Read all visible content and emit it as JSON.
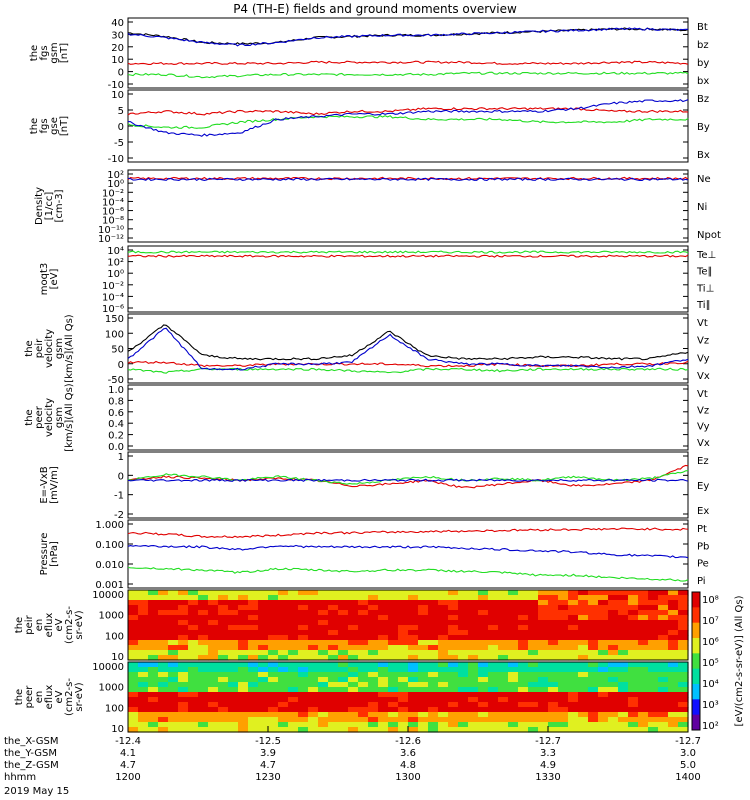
{
  "title": "P4 (TH-E) fields and ground moments overview",
  "date": "2019 May 15",
  "colors": {
    "black": "#000000",
    "red": "#e00000",
    "green": "#22dd22",
    "blue": "#0000cc"
  },
  "chart_data": [
    {
      "type": "line",
      "name": "fgs_gsm",
      "ylabel": [
        "the",
        "fgs",
        "gsm",
        "[nT]"
      ],
      "ylim": [
        -15,
        42
      ],
      "yticks": [
        "40",
        "30",
        "20",
        "10",
        "0",
        "-10"
      ],
      "legend": [
        {
          "text": "Bt",
          "color": "black"
        },
        {
          "text": "bz",
          "color": "red"
        },
        {
          "text": "by",
          "color": "green"
        },
        {
          "text": "bx",
          "color": "blue"
        }
      ],
      "series": [
        {
          "name": "Bt",
          "color": "black",
          "values": [
            30,
            27,
            22,
            21,
            22,
            26,
            27,
            28,
            28,
            29,
            30,
            31,
            32,
            33,
            33,
            32
          ]
        },
        {
          "name": "bz",
          "color": "red",
          "values": [
            5,
            5,
            5,
            5,
            5,
            6,
            6,
            6,
            6,
            6,
            5,
            5,
            5,
            6,
            6,
            5
          ]
        },
        {
          "name": "by",
          "color": "green",
          "values": [
            -4,
            -4,
            -6,
            -5,
            -4,
            -4,
            -4,
            -4,
            -4,
            -3,
            -3,
            -3,
            -3,
            -3,
            -3,
            -3
          ]
        },
        {
          "name": "bx",
          "color": "blue",
          "values": [
            29,
            26,
            22,
            20,
            22,
            26,
            27,
            28,
            28,
            29,
            30,
            31,
            32,
            33,
            33,
            32
          ]
        }
      ]
    },
    {
      "type": "line",
      "name": "fgs_gse",
      "ylabel": [
        "the",
        "fgs",
        "gse",
        "[nT]"
      ],
      "ylim": [
        -15,
        12
      ],
      "yticks": [
        "10",
        "5",
        "0",
        "-5",
        "-10"
      ],
      "legend": [
        {
          "text": "Bz",
          "color": "red"
        },
        {
          "text": "By",
          "color": "green"
        },
        {
          "text": "Bx",
          "color": "blue"
        }
      ],
      "series": [
        {
          "name": "Bz",
          "color": "red",
          "values": [
            3,
            4,
            3,
            4,
            4,
            3,
            4,
            4,
            5,
            5,
            5,
            5,
            5,
            4,
            4,
            4
          ]
        },
        {
          "name": "By",
          "color": "green",
          "values": [
            -1,
            -2,
            -2,
            0,
            1,
            2,
            2,
            2,
            1,
            1,
            1,
            0,
            0,
            0,
            1,
            1
          ]
        },
        {
          "name": "Bx",
          "color": "blue",
          "values": [
            0,
            -4,
            -5,
            -4,
            1,
            2,
            3,
            3,
            4,
            4,
            4,
            4,
            5,
            7,
            8,
            8
          ]
        }
      ]
    },
    {
      "type": "line",
      "name": "density",
      "ylabel": [
        "Density",
        "[1/cc]",
        "[cm-3]"
      ],
      "ylim": [
        -14,
        3
      ],
      "ylog": true,
      "yticks": [
        "10²",
        "10⁰",
        "10⁻²",
        "10⁻⁴",
        "10⁻⁶",
        "10⁻⁸",
        "10⁻¹⁰",
        "10⁻¹²"
      ],
      "legend": [
        {
          "text": "Ne",
          "color": "red"
        },
        {
          "text": "Ni",
          "color": "black"
        },
        {
          "text": "Npot",
          "color": "blue"
        }
      ],
      "series": [
        {
          "name": "Ne",
          "color": "red",
          "values": [
            1,
            1,
            1,
            1,
            1,
            1,
            1,
            1,
            1,
            1,
            1,
            1,
            1,
            1,
            1,
            1
          ]
        },
        {
          "name": "Npot",
          "color": "blue",
          "values": [
            0.8,
            0.8,
            0.8,
            0.8,
            0.8,
            0.8,
            0.8,
            0.8,
            0.8,
            0.8,
            0.8,
            0.8,
            0.8,
            0.8,
            0.8,
            0.8
          ]
        }
      ]
    },
    {
      "type": "line",
      "name": "temperature",
      "ylabel": [
        "moqt3",
        "[eV]"
      ],
      "ylim": [
        -8,
        5
      ],
      "ylog": true,
      "yticks": [
        "10⁴",
        "10²",
        "10⁰",
        "10⁻²",
        "10⁻⁴",
        "10⁻⁶"
      ],
      "legend": [
        {
          "text": "Te⊥",
          "color": "red"
        },
        {
          "text": "Te∥",
          "color": "black"
        },
        {
          "text": "Ti⊥",
          "color": "blue"
        },
        {
          "text": "Ti∥",
          "color": "green"
        }
      ],
      "series": [
        {
          "name": "Te⊥",
          "color": "red",
          "values": [
            3,
            3,
            3,
            3,
            3,
            3,
            3,
            3,
            3,
            3,
            3,
            3,
            3,
            3,
            3,
            3
          ]
        },
        {
          "name": "Ti∥",
          "color": "green",
          "values": [
            3.8,
            3.8,
            3.8,
            3.8,
            3.8,
            3.8,
            3.8,
            3.8,
            3.8,
            3.8,
            3.8,
            3.8,
            3.8,
            3.8,
            3.8,
            3.8
          ]
        }
      ]
    },
    {
      "type": "line",
      "name": "peir_velocity",
      "ylabel": [
        "the",
        "peir",
        "velocity",
        "gsm",
        "[km/s](All Qs)"
      ],
      "ylim": [
        -50,
        150
      ],
      "yticks": [
        "150",
        "100",
        "50",
        "0",
        "-50"
      ],
      "legend": [
        {
          "text": "Vt",
          "color": "black"
        },
        {
          "text": "Vz",
          "color": "red"
        },
        {
          "text": "Vy",
          "color": "green"
        },
        {
          "text": "Vx",
          "color": "blue"
        }
      ],
      "series": [
        {
          "name": "Vt",
          "color": "black",
          "values": [
            40,
            120,
            30,
            20,
            20,
            20,
            30,
            100,
            30,
            20,
            20,
            25,
            25,
            20,
            20,
            40
          ]
        },
        {
          "name": "Vz",
          "color": "red",
          "values": [
            10,
            10,
            0,
            0,
            5,
            5,
            5,
            5,
            0,
            0,
            5,
            0,
            0,
            5,
            5,
            10
          ]
        },
        {
          "name": "Vy",
          "color": "green",
          "values": [
            -10,
            -20,
            -10,
            -10,
            -10,
            -10,
            -15,
            -20,
            -10,
            -10,
            -15,
            -10,
            -10,
            -10,
            -10,
            -10
          ]
        },
        {
          "name": "Vx",
          "color": "blue",
          "values": [
            20,
            110,
            -10,
            -10,
            5,
            5,
            10,
            90,
            20,
            5,
            5,
            0,
            0,
            -5,
            0,
            20
          ]
        }
      ]
    },
    {
      "type": "line",
      "name": "peer_velocity",
      "ylabel": [
        "the",
        "peer",
        "velocity",
        "gsm",
        "[km/s](All Qs)"
      ],
      "ylim": [
        0,
        1
      ],
      "yticks": [
        "1.0",
        "0.8",
        "0.6",
        "0.4",
        "0.2",
        "0.0"
      ],
      "legend": [
        {
          "text": "Vt",
          "color": "black"
        },
        {
          "text": "Vz",
          "color": "red"
        },
        {
          "text": "Vy",
          "color": "green"
        },
        {
          "text": "Vx",
          "color": "blue"
        }
      ],
      "series": []
    },
    {
      "type": "line",
      "name": "efield",
      "ylabel": [
        "E=-VxB",
        "[mV/m]"
      ],
      "ylim": [
        -2,
        1.5
      ],
      "yticks": [
        "1",
        "0",
        "-1",
        "-2"
      ],
      "legend": [
        {
          "text": "Ez",
          "color": "red"
        },
        {
          "text": "Ey",
          "color": "green"
        },
        {
          "text": "Ex",
          "color": "blue"
        }
      ],
      "series": [
        {
          "name": "Ez",
          "color": "red",
          "values": [
            0,
            0.2,
            0.1,
            0,
            0.1,
            0,
            -0.3,
            -0.2,
            0,
            -0.4,
            -0.2,
            0,
            -0.3,
            -0.2,
            0,
            0.8
          ]
        },
        {
          "name": "Ey",
          "color": "green",
          "values": [
            0,
            0.3,
            0.2,
            0,
            0.2,
            0,
            -0.2,
            0,
            0.2,
            0,
            0.1,
            0,
            0.2,
            0,
            0.1,
            0.5
          ]
        },
        {
          "name": "Ex",
          "color": "blue",
          "values": [
            0,
            0,
            0,
            0,
            0,
            0,
            0,
            0,
            0,
            0,
            0,
            0,
            0,
            0,
            0,
            0
          ]
        }
      ]
    },
    {
      "type": "line",
      "name": "pressure",
      "ylabel": [
        "Pressure",
        "[nPa]"
      ],
      "ylim": [
        -2.6,
        0.05
      ],
      "ylog": true,
      "yticks": [
        "1.000",
        "0.100",
        "0.010",
        "0.001"
      ],
      "legend": [
        {
          "text": "Pt",
          "color": "black"
        },
        {
          "text": "Pb",
          "color": "red"
        },
        {
          "text": "Pe",
          "color": "green"
        },
        {
          "text": "Pi",
          "color": "blue"
        }
      ],
      "series": [
        {
          "name": "Pb",
          "color": "red",
          "values": [
            -0.45,
            -0.5,
            -0.6,
            -0.6,
            -0.55,
            -0.45,
            -0.45,
            -0.42,
            -0.4,
            -0.38,
            -0.36,
            -0.33,
            -0.32,
            -0.3,
            -0.3,
            -0.32
          ]
        },
        {
          "name": "Pi",
          "color": "blue",
          "values": [
            -0.95,
            -0.98,
            -1.0,
            -1.1,
            -0.95,
            -1.0,
            -1.0,
            -1.0,
            -1.0,
            -1.05,
            -1.1,
            -1.15,
            -1.2,
            -1.3,
            -1.35,
            -1.4
          ]
        },
        {
          "name": "Pe",
          "color": "green",
          "values": [
            -1.8,
            -1.85,
            -1.9,
            -2.0,
            -1.85,
            -1.9,
            -1.95,
            -1.9,
            -1.9,
            -1.95,
            -2.0,
            -2.1,
            -2.1,
            -2.2,
            -2.25,
            -2.3
          ]
        }
      ]
    },
    {
      "type": "heatmap",
      "name": "peir_en_eflux",
      "ylabel": [
        "the",
        "peir",
        "en",
        "eflux",
        "eV",
        "(cm2-s-",
        "sr-eV)"
      ],
      "yticks": [
        "10000",
        "1000",
        "100",
        "10"
      ]
    },
    {
      "type": "heatmap",
      "name": "peer_en_eflux",
      "ylabel": [
        "the",
        "peer",
        "en",
        "eflux",
        "eV",
        "(cm2-s-",
        "sr-eV)"
      ],
      "yticks": [
        "10000",
        "1000",
        "100",
        "10"
      ]
    }
  ],
  "colorbar": {
    "label": "[eV/(cm2-s-sr-eV)] (All Qs)",
    "ticks": [
      "10⁸",
      "10⁷",
      "10⁶",
      "10⁵",
      "10⁴",
      "10³",
      "10²"
    ]
  },
  "xaxis": {
    "row_labels": [
      "the_X-GSM",
      "the_Y-GSM",
      "the_Z-GSM",
      "hhmm"
    ],
    "ticks": [
      {
        "x": "-12.4",
        "y": "4.1",
        "z": "4.7",
        "hhmm": "1200"
      },
      {
        "x": "-12.5",
        "y": "3.9",
        "z": "4.7",
        "hhmm": "1230"
      },
      {
        "x": "-12.6",
        "y": "3.6",
        "z": "4.8",
        "hhmm": "1300"
      },
      {
        "x": "-12.7",
        "y": "3.3",
        "z": "4.9",
        "hhmm": "1330"
      },
      {
        "x": "-12.7",
        "y": "3.0",
        "z": "5.0",
        "hhmm": "1400"
      }
    ]
  }
}
